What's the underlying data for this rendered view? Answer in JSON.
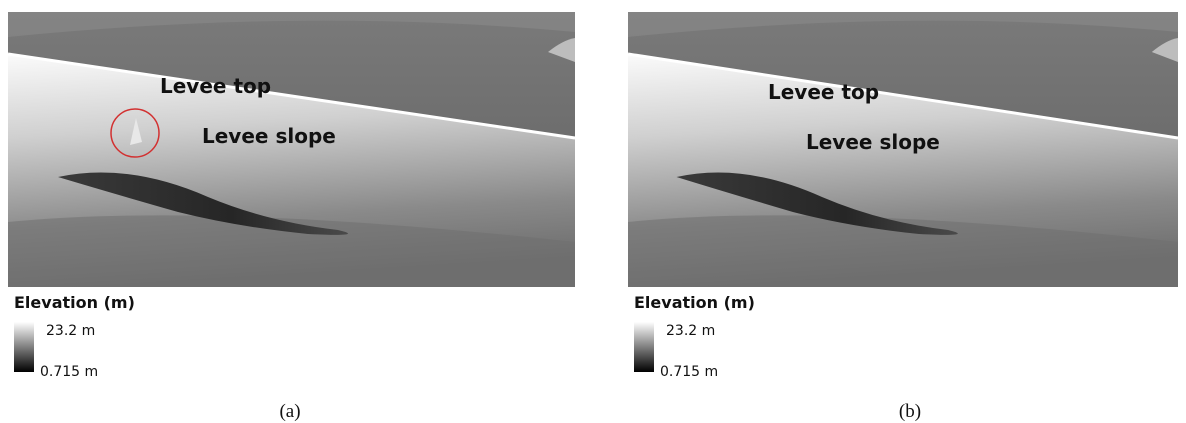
{
  "panels": [
    {
      "labels": {
        "top": "Levee top",
        "slope": "Levee slope"
      },
      "legend": {
        "title": "Elevation (m)",
        "max": "23.2 m",
        "min": "0.715 m"
      },
      "caption": "(a)"
    },
    {
      "labels": {
        "top": "Levee top",
        "slope": "Levee slope"
      },
      "legend": {
        "title": "Elevation (m)",
        "max": "23.2 m",
        "min": "0.715 m"
      },
      "caption": "(b)"
    }
  ]
}
